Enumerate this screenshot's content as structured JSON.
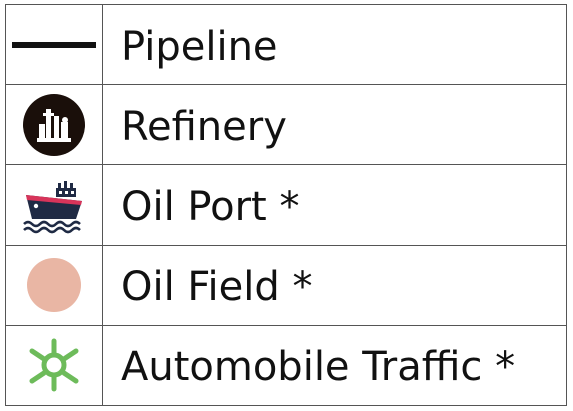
{
  "legend": {
    "items": [
      {
        "label": "Pipeline",
        "icon": "pipeline-line-icon",
        "color": "#111111"
      },
      {
        "label": "Refinery",
        "icon": "refinery-icon",
        "color": "#1a0f0a"
      },
      {
        "label": "Oil Port *",
        "icon": "oil-port-ship-icon",
        "color": "#1f2a44"
      },
      {
        "label": "Oil Field *",
        "icon": "oil-field-circle-icon",
        "color": "#e9b6a4"
      },
      {
        "label": "Automobile Traffic *",
        "icon": "automobile-traffic-icon",
        "color": "#6dbb5a"
      }
    ]
  }
}
